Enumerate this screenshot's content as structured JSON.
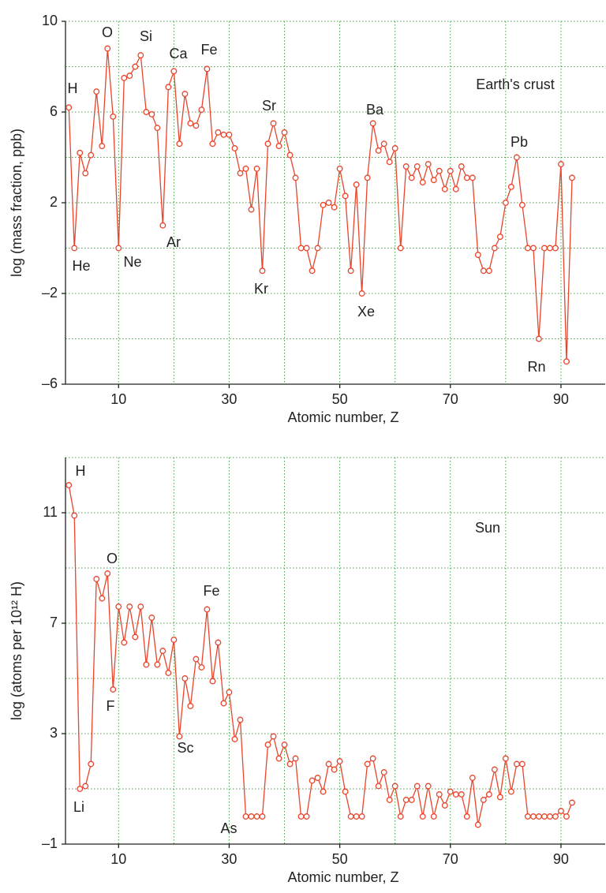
{
  "chart_data": [
    {
      "type": "line",
      "marker": "circle",
      "color": "#e8452c",
      "grid": true,
      "xlabel": "Atomic number, Z",
      "ylabel": "log (mass fraction, ppb)",
      "annotations": [
        "H",
        "He",
        "O",
        "Ne",
        "Si",
        "Ar",
        "Ca",
        "Fe",
        "Sr",
        "Kr",
        "Ba",
        "Xe",
        "Pb",
        "Rn",
        "Earth's crust"
      ],
      "x": [
        1,
        2,
        3,
        4,
        5,
        6,
        7,
        8,
        9,
        10,
        11,
        12,
        13,
        14,
        15,
        16,
        17,
        18,
        19,
        20,
        21,
        22,
        23,
        24,
        25,
        26,
        27,
        28,
        29,
        30,
        31,
        32,
        33,
        34,
        35,
        36,
        37,
        38,
        39,
        40,
        41,
        42,
        43,
        44,
        45,
        46,
        47,
        48,
        49,
        50,
        51,
        52,
        53,
        54,
        55,
        56,
        57,
        58,
        59,
        60,
        61,
        62,
        63,
        64,
        65,
        66,
        67,
        68,
        69,
        70,
        71,
        72,
        73,
        74,
        75,
        76,
        77,
        78,
        79,
        80,
        81,
        82,
        83,
        84,
        85,
        86,
        87,
        88,
        89,
        90,
        91,
        92
      ],
      "values": [
        6.2,
        0,
        4.2,
        3.3,
        4.1,
        6.9,
        4.5,
        8.8,
        5.8,
        0,
        7.5,
        7.6,
        8.0,
        8.5,
        6.0,
        5.9,
        5.3,
        1.0,
        7.1,
        7.8,
        4.6,
        6.8,
        5.5,
        5.4,
        6.1,
        7.9,
        4.6,
        5.1,
        5.0,
        5.0,
        4.4,
        3.3,
        3.5,
        1.7,
        3.5,
        -1,
        4.6,
        5.5,
        4.5,
        5.1,
        4.1,
        3.1,
        0,
        0,
        -1,
        0,
        1.9,
        2.0,
        1.8,
        3.5,
        2.3,
        -1,
        2.8,
        -2,
        3.1,
        5.5,
        4.3,
        4.6,
        3.8,
        4.4,
        0,
        3.6,
        3.1,
        3.6,
        2.9,
        3.7,
        3.0,
        3.4,
        2.6,
        3.4,
        2.6,
        3.6,
        3.1,
        3.1,
        -0.3,
        -1,
        -1,
        0,
        0.5,
        2.0,
        2.7,
        4.0,
        1.9,
        0,
        0,
        -4,
        0,
        0,
        0,
        3.7,
        -5,
        3.1
      ],
      "xlim": [
        0.4,
        98
      ],
      "xticks": [
        10,
        30,
        50,
        70,
        90
      ],
      "xgrid": [
        10,
        20,
        30,
        40,
        50,
        60,
        70,
        80,
        90
      ],
      "ylim": [
        -6,
        10
      ],
      "yticks": [
        {
          "value": -6,
          "label": "–6"
        },
        {
          "value": -2,
          "label": "–2"
        },
        2,
        6,
        10
      ],
      "ygrid": [
        -4,
        -2,
        0,
        2,
        4,
        6,
        8,
        10
      ]
    },
    {
      "type": "line",
      "marker": "circle",
      "color": "#e8452c",
      "grid": true,
      "xlabel": "Atomic number, Z",
      "ylabel": "log (atoms per 10¹² H)",
      "annotations": [
        "H",
        "Li",
        "O",
        "F",
        "Fe",
        "Sc",
        "As",
        "Sun"
      ],
      "x": [
        1,
        2,
        3,
        4,
        5,
        6,
        7,
        8,
        9,
        10,
        11,
        12,
        13,
        14,
        15,
        16,
        17,
        18,
        19,
        20,
        21,
        22,
        23,
        24,
        25,
        26,
        27,
        28,
        29,
        30,
        31,
        32,
        33,
        34,
        35,
        36,
        37,
        38,
        39,
        40,
        41,
        42,
        43,
        44,
        45,
        46,
        47,
        48,
        49,
        50,
        51,
        52,
        53,
        54,
        55,
        56,
        57,
        58,
        59,
        60,
        61,
        62,
        63,
        64,
        65,
        66,
        67,
        68,
        69,
        70,
        71,
        72,
        73,
        74,
        75,
        76,
        77,
        78,
        79,
        80,
        81,
        82,
        83,
        84,
        85,
        86,
        87,
        88,
        89,
        90,
        91,
        92
      ],
      "values": [
        12,
        10.9,
        1.0,
        1.1,
        1.9,
        8.6,
        7.9,
        8.8,
        4.6,
        7.6,
        6.3,
        7.6,
        6.5,
        7.6,
        5.5,
        7.2,
        5.5,
        6.0,
        5.2,
        6.4,
        2.9,
        5.0,
        4.0,
        5.7,
        5.4,
        7.5,
        4.9,
        6.3,
        4.1,
        4.5,
        2.8,
        3.5,
        0,
        0,
        0,
        0,
        2.6,
        2.9,
        2.1,
        2.6,
        1.9,
        2.1,
        0,
        0,
        1.3,
        1.4,
        0.9,
        1.9,
        1.7,
        2.0,
        0.9,
        0,
        0,
        0,
        1.9,
        2.1,
        1.1,
        1.6,
        0.6,
        1.1,
        0,
        0.6,
        0.6,
        1.1,
        0,
        1.1,
        0,
        0.8,
        0.4,
        0.9,
        0.8,
        0.8,
        0,
        1.4,
        -0.3,
        0.6,
        0.8,
        1.7,
        0.7,
        2.1,
        0.9,
        1.9,
        1.9,
        0,
        0,
        0,
        0,
        0,
        0,
        0.2,
        0,
        0.5
      ],
      "xlim": [
        0.4,
        98
      ],
      "xticks": [
        10,
        30,
        50,
        70,
        90
      ],
      "xgrid": [
        10,
        20,
        30,
        40,
        50,
        60,
        70,
        80,
        90
      ],
      "ylim": [
        -1,
        13
      ],
      "yticks": [
        {
          "value": -1,
          "label": "–1"
        },
        3,
        7,
        11
      ],
      "ygrid": [
        1,
        3,
        5,
        7,
        9,
        11,
        13
      ]
    }
  ]
}
